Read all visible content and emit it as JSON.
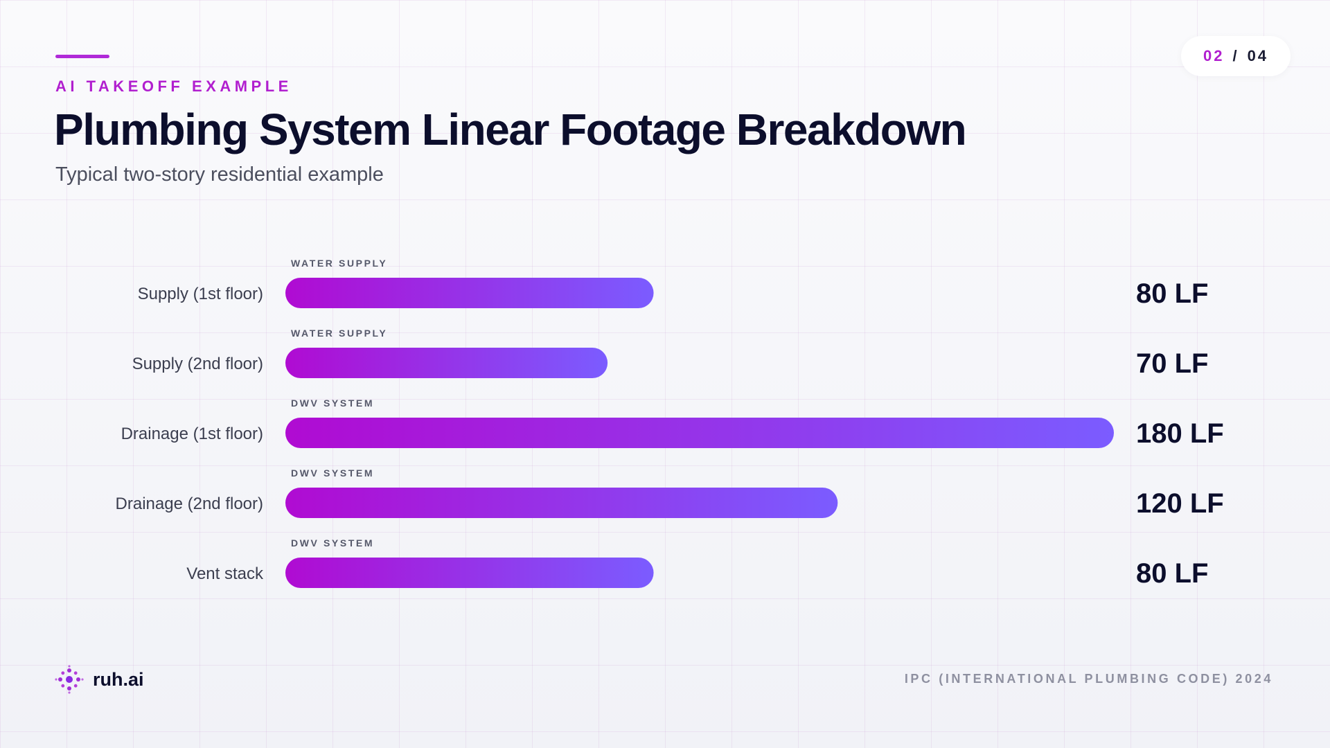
{
  "header": {
    "eyebrow": "AI TAKEOFF EXAMPLE",
    "title": "Plumbing System Linear Footage Breakdown",
    "subtitle": "Typical two-story residential example"
  },
  "pager": {
    "current": "02",
    "separator": "/",
    "total": "04"
  },
  "footer": {
    "brand": "ruh.ai",
    "logo_icon": "dot-cluster-icon",
    "source": "IPC (INTERNATIONAL PLUMBING CODE) 2024"
  },
  "colors": {
    "accent": "#b11fcf",
    "bar_start": "#b00bd2",
    "bar_end": "#7b5cff",
    "text_dark": "#0c0e2c",
    "text_muted": "#4b4e5e"
  },
  "chart_data": {
    "type": "bar",
    "orientation": "horizontal",
    "categories": [
      "Supply (1st floor)",
      "Supply (2nd floor)",
      "Drainage (1st floor)",
      "Drainage (2nd floor)",
      "Vent stack"
    ],
    "groups": [
      "WATER SUPPLY",
      "WATER SUPPLY",
      "DWV SYSTEM",
      "DWV SYSTEM",
      "DWV SYSTEM"
    ],
    "values": [
      80,
      70,
      180,
      120,
      80
    ],
    "value_labels": [
      "80 LF",
      "70 LF",
      "180 LF",
      "120 LF",
      "80 LF"
    ],
    "xlim": [
      0,
      180
    ],
    "grid": false,
    "legend": "none"
  }
}
